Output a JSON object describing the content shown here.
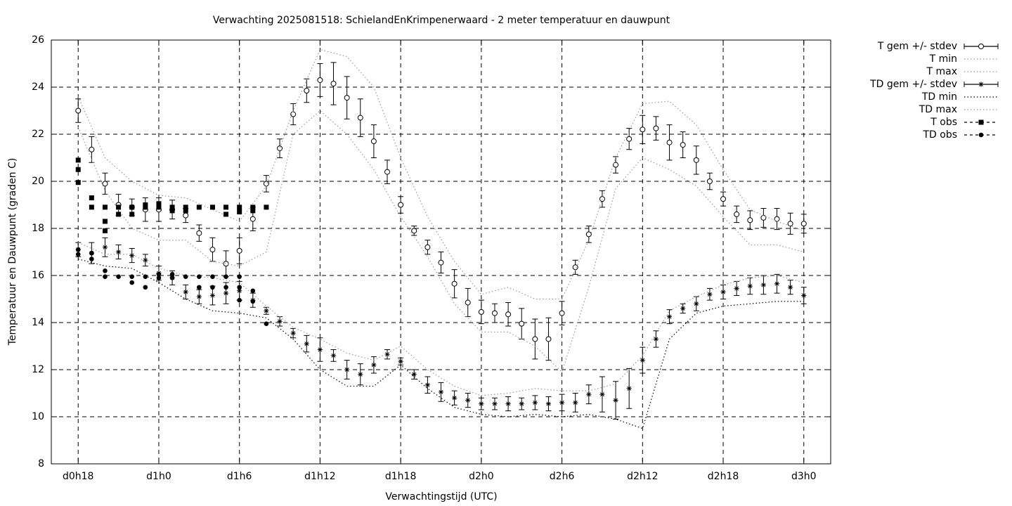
{
  "chart_data": {
    "type": "line",
    "title": "Verwachting 2025081518: SchielandEnKrimpenerwaard - 2 meter temperatuur en dauwpunt",
    "xlabel": "Verwachtingstijd (UTC)",
    "ylabel": "Temperatuur en Dauwpunt (graden C)",
    "xlim": [
      16,
      74
    ],
    "xticks": [
      {
        "value": 18,
        "label": "d0h18"
      },
      {
        "value": 24,
        "label": "d1h0"
      },
      {
        "value": 30,
        "label": "d1h6"
      },
      {
        "value": 36,
        "label": "d1h12"
      },
      {
        "value": 42,
        "label": "d1h18"
      },
      {
        "value": 48,
        "label": "d2h0"
      },
      {
        "value": 54,
        "label": "d2h6"
      },
      {
        "value": 60,
        "label": "d2h12"
      },
      {
        "value": 66,
        "label": "d2h18"
      },
      {
        "value": 72,
        "label": "d3h0"
      }
    ],
    "ylim": [
      8,
      26
    ],
    "yticks": [
      8,
      10,
      12,
      14,
      16,
      18,
      20,
      22,
      24,
      26
    ],
    "grid": true,
    "legend": "outside-top-right",
    "series": [
      {
        "name": "T gem +/- stdev",
        "color": "#000000",
        "marker": "circle",
        "dash": "none",
        "x": [
          18,
          19,
          20,
          21,
          22,
          23,
          24,
          25,
          26,
          27,
          28,
          29,
          30,
          31,
          32,
          33,
          34,
          35,
          36,
          37,
          38,
          39,
          40,
          41,
          42,
          43,
          44,
          45,
          46,
          47,
          48,
          49,
          50,
          51,
          52,
          53,
          54,
          55,
          56,
          57,
          58,
          59,
          60,
          61,
          62,
          63,
          64,
          65,
          66,
          67,
          68,
          69,
          70,
          71,
          72
        ],
        "values": [
          23.0,
          21.35,
          19.9,
          19.0,
          18.9,
          18.8,
          18.8,
          18.8,
          18.55,
          17.8,
          17.1,
          16.5,
          17.05,
          18.4,
          19.9,
          21.4,
          22.85,
          23.85,
          24.3,
          24.15,
          23.55,
          22.7,
          21.7,
          20.4,
          19.0,
          17.9,
          17.2,
          16.55,
          15.65,
          14.85,
          14.45,
          14.4,
          14.35,
          13.95,
          13.3,
          13.3,
          14.4,
          16.35,
          17.75,
          19.25,
          20.7,
          21.8,
          22.2,
          22.25,
          21.65,
          21.55,
          20.9,
          20.0,
          19.25,
          18.6,
          18.35,
          18.45,
          18.4,
          18.2,
          18.2
        ],
        "errors": [
          0.5,
          0.55,
          0.45,
          0.45,
          0.35,
          0.5,
          0.5,
          0.4,
          0.3,
          0.35,
          0.5,
          0.55,
          0.55,
          0.5,
          0.35,
          0.4,
          0.45,
          0.5,
          0.7,
          0.9,
          0.9,
          0.8,
          0.7,
          0.5,
          0.35,
          0.2,
          0.3,
          0.45,
          0.6,
          0.6,
          0.5,
          0.4,
          0.5,
          0.65,
          0.85,
          0.9,
          0.5,
          0.3,
          0.35,
          0.35,
          0.35,
          0.45,
          0.6,
          0.5,
          0.75,
          0.55,
          0.6,
          0.35,
          0.3,
          0.35,
          0.4,
          0.4,
          0.45,
          0.45,
          0.4
        ]
      },
      {
        "name": "T min",
        "color": "#999999",
        "marker": "none",
        "dash": "dotted",
        "x": [
          18,
          20,
          22,
          24,
          26,
          28,
          30,
          32,
          34,
          36,
          38,
          40,
          42,
          44,
          46,
          48,
          50,
          52,
          54,
          56,
          58,
          60,
          62,
          64,
          66,
          68,
          70,
          72
        ],
        "values": [
          22.3,
          19.6,
          18.0,
          17.5,
          17.5,
          16.6,
          16.4,
          17.0,
          22.0,
          23.0,
          22.0,
          20.5,
          18.5,
          16.8,
          14.8,
          13.6,
          13.6,
          13.0,
          11.9,
          15.5,
          19.7,
          21.0,
          20.5,
          19.8,
          18.5,
          17.3,
          17.3,
          17.0
        ]
      },
      {
        "name": "T max",
        "color": "#999999",
        "marker": "none",
        "dash": "dotted",
        "x": [
          18,
          20,
          22,
          24,
          26,
          28,
          30,
          32,
          34,
          36,
          38,
          40,
          42,
          44,
          46,
          48,
          50,
          52,
          54,
          56,
          58,
          60,
          62,
          64,
          66,
          68,
          70,
          72
        ],
        "values": [
          23.6,
          21.0,
          20.0,
          19.4,
          19.3,
          18.8,
          18.3,
          19.8,
          23.0,
          25.6,
          25.3,
          24.0,
          21.0,
          18.5,
          16.6,
          15.2,
          15.5,
          15.0,
          15.0,
          17.5,
          21.0,
          23.3,
          23.4,
          22.4,
          20.5,
          18.8,
          18.3,
          17.9
        ]
      },
      {
        "name": "TD gem +/- stdev",
        "color": "#000000",
        "marker": "star",
        "dash": "none",
        "x": [
          18,
          19,
          20,
          21,
          22,
          23,
          24,
          25,
          26,
          27,
          28,
          29,
          30,
          31,
          32,
          33,
          34,
          35,
          36,
          37,
          38,
          39,
          40,
          41,
          42,
          43,
          44,
          45,
          46,
          47,
          48,
          49,
          50,
          51,
          52,
          53,
          54,
          55,
          56,
          57,
          58,
          59,
          60,
          61,
          62,
          63,
          64,
          65,
          66,
          67,
          68,
          69,
          70,
          71,
          72
        ],
        "values": [
          17.1,
          16.95,
          17.2,
          17.0,
          16.85,
          16.65,
          16.1,
          15.9,
          15.3,
          15.1,
          15.15,
          15.25,
          15.35,
          14.95,
          14.5,
          14.05,
          13.55,
          13.1,
          12.85,
          12.6,
          12.0,
          11.8,
          12.2,
          12.65,
          12.35,
          11.8,
          11.35,
          11.05,
          10.8,
          10.7,
          10.55,
          10.55,
          10.55,
          10.55,
          10.6,
          10.55,
          10.6,
          10.6,
          10.95,
          10.95,
          10.7,
          11.2,
          12.4,
          13.3,
          14.25,
          14.6,
          14.8,
          15.2,
          15.3,
          15.45,
          15.55,
          15.6,
          15.65,
          15.5,
          15.15
        ],
        "errors": [
          0.3,
          0.45,
          0.4,
          0.3,
          0.3,
          0.25,
          0.3,
          0.3,
          0.3,
          0.3,
          0.4,
          0.45,
          0.4,
          0.3,
          0.15,
          0.2,
          0.2,
          0.35,
          0.5,
          0.25,
          0.4,
          0.45,
          0.35,
          0.2,
          0.15,
          0.2,
          0.35,
          0.4,
          0.3,
          0.3,
          0.25,
          0.25,
          0.3,
          0.25,
          0.3,
          0.3,
          0.35,
          0.4,
          0.4,
          0.75,
          0.8,
          0.85,
          0.55,
          0.35,
          0.3,
          0.2,
          0.3,
          0.25,
          0.3,
          0.3,
          0.35,
          0.4,
          0.4,
          0.3,
          0.35
        ]
      },
      {
        "name": "TD min",
        "color": "#000000",
        "marker": "none",
        "dash": "dotted",
        "x": [
          18,
          20,
          22,
          24,
          26,
          28,
          30,
          32,
          34,
          36,
          38,
          40,
          42,
          44,
          46,
          48,
          50,
          52,
          54,
          56,
          58,
          60,
          62,
          64,
          66,
          68,
          70,
          72
        ],
        "values": [
          16.7,
          16.4,
          16.3,
          15.7,
          15.0,
          14.5,
          14.4,
          14.2,
          13.3,
          12.0,
          11.3,
          11.3,
          12.2,
          11.2,
          10.4,
          10.1,
          10.0,
          10.1,
          10.0,
          10.1,
          9.9,
          9.5,
          13.3,
          14.4,
          14.7,
          14.8,
          14.9,
          14.9
        ]
      },
      {
        "name": "TD max",
        "color": "#999999",
        "marker": "none",
        "dash": "dotted",
        "x": [
          18,
          20,
          22,
          24,
          26,
          28,
          30,
          32,
          34,
          36,
          38,
          40,
          42,
          44,
          46,
          48,
          50,
          52,
          54,
          56,
          58,
          60,
          62,
          64,
          66,
          68,
          70,
          72
        ],
        "values": [
          17.4,
          16.9,
          16.9,
          16.3,
          16.0,
          15.9,
          15.7,
          14.7,
          13.8,
          13.3,
          12.7,
          12.4,
          13.0,
          12.0,
          11.3,
          10.9,
          11.0,
          11.2,
          11.1,
          11.1,
          11.4,
          12.6,
          14.5,
          15.1,
          15.6,
          15.9,
          16.0,
          15.7
        ]
      },
      {
        "name": "T obs",
        "color": "#000000",
        "marker": "square",
        "dash": "none",
        "x": [
          18,
          18,
          18,
          19,
          19,
          20,
          20,
          20,
          21,
          21,
          22,
          22,
          23,
          23,
          24,
          24,
          25,
          25,
          26,
          26,
          27,
          28,
          29,
          29,
          30,
          30,
          31,
          31,
          32
        ],
        "values": [
          20.9,
          20.5,
          19.95,
          19.3,
          18.9,
          18.9,
          18.3,
          17.9,
          18.9,
          18.6,
          18.9,
          18.6,
          19.0,
          18.9,
          19.05,
          18.9,
          18.9,
          18.75,
          18.9,
          18.75,
          18.9,
          18.9,
          18.9,
          18.6,
          18.9,
          18.7,
          18.9,
          18.75,
          18.9
        ]
      },
      {
        "name": "TD obs",
        "color": "#000000",
        "marker": "dot",
        "dash": "none",
        "x": [
          18,
          18,
          19,
          19,
          20,
          20,
          21,
          22,
          22,
          23,
          23,
          24,
          24,
          25,
          25,
          26,
          27,
          27,
          28,
          28,
          29,
          29,
          30,
          30,
          30,
          31,
          31,
          32
        ],
        "values": [
          17.1,
          16.9,
          16.95,
          16.7,
          16.2,
          15.95,
          15.95,
          15.95,
          15.7,
          15.95,
          15.5,
          16.05,
          15.9,
          16.05,
          15.9,
          15.95,
          15.95,
          15.5,
          15.95,
          15.5,
          15.95,
          15.5,
          15.95,
          15.5,
          14.95,
          15.35,
          14.9,
          13.95
        ]
      }
    ]
  }
}
